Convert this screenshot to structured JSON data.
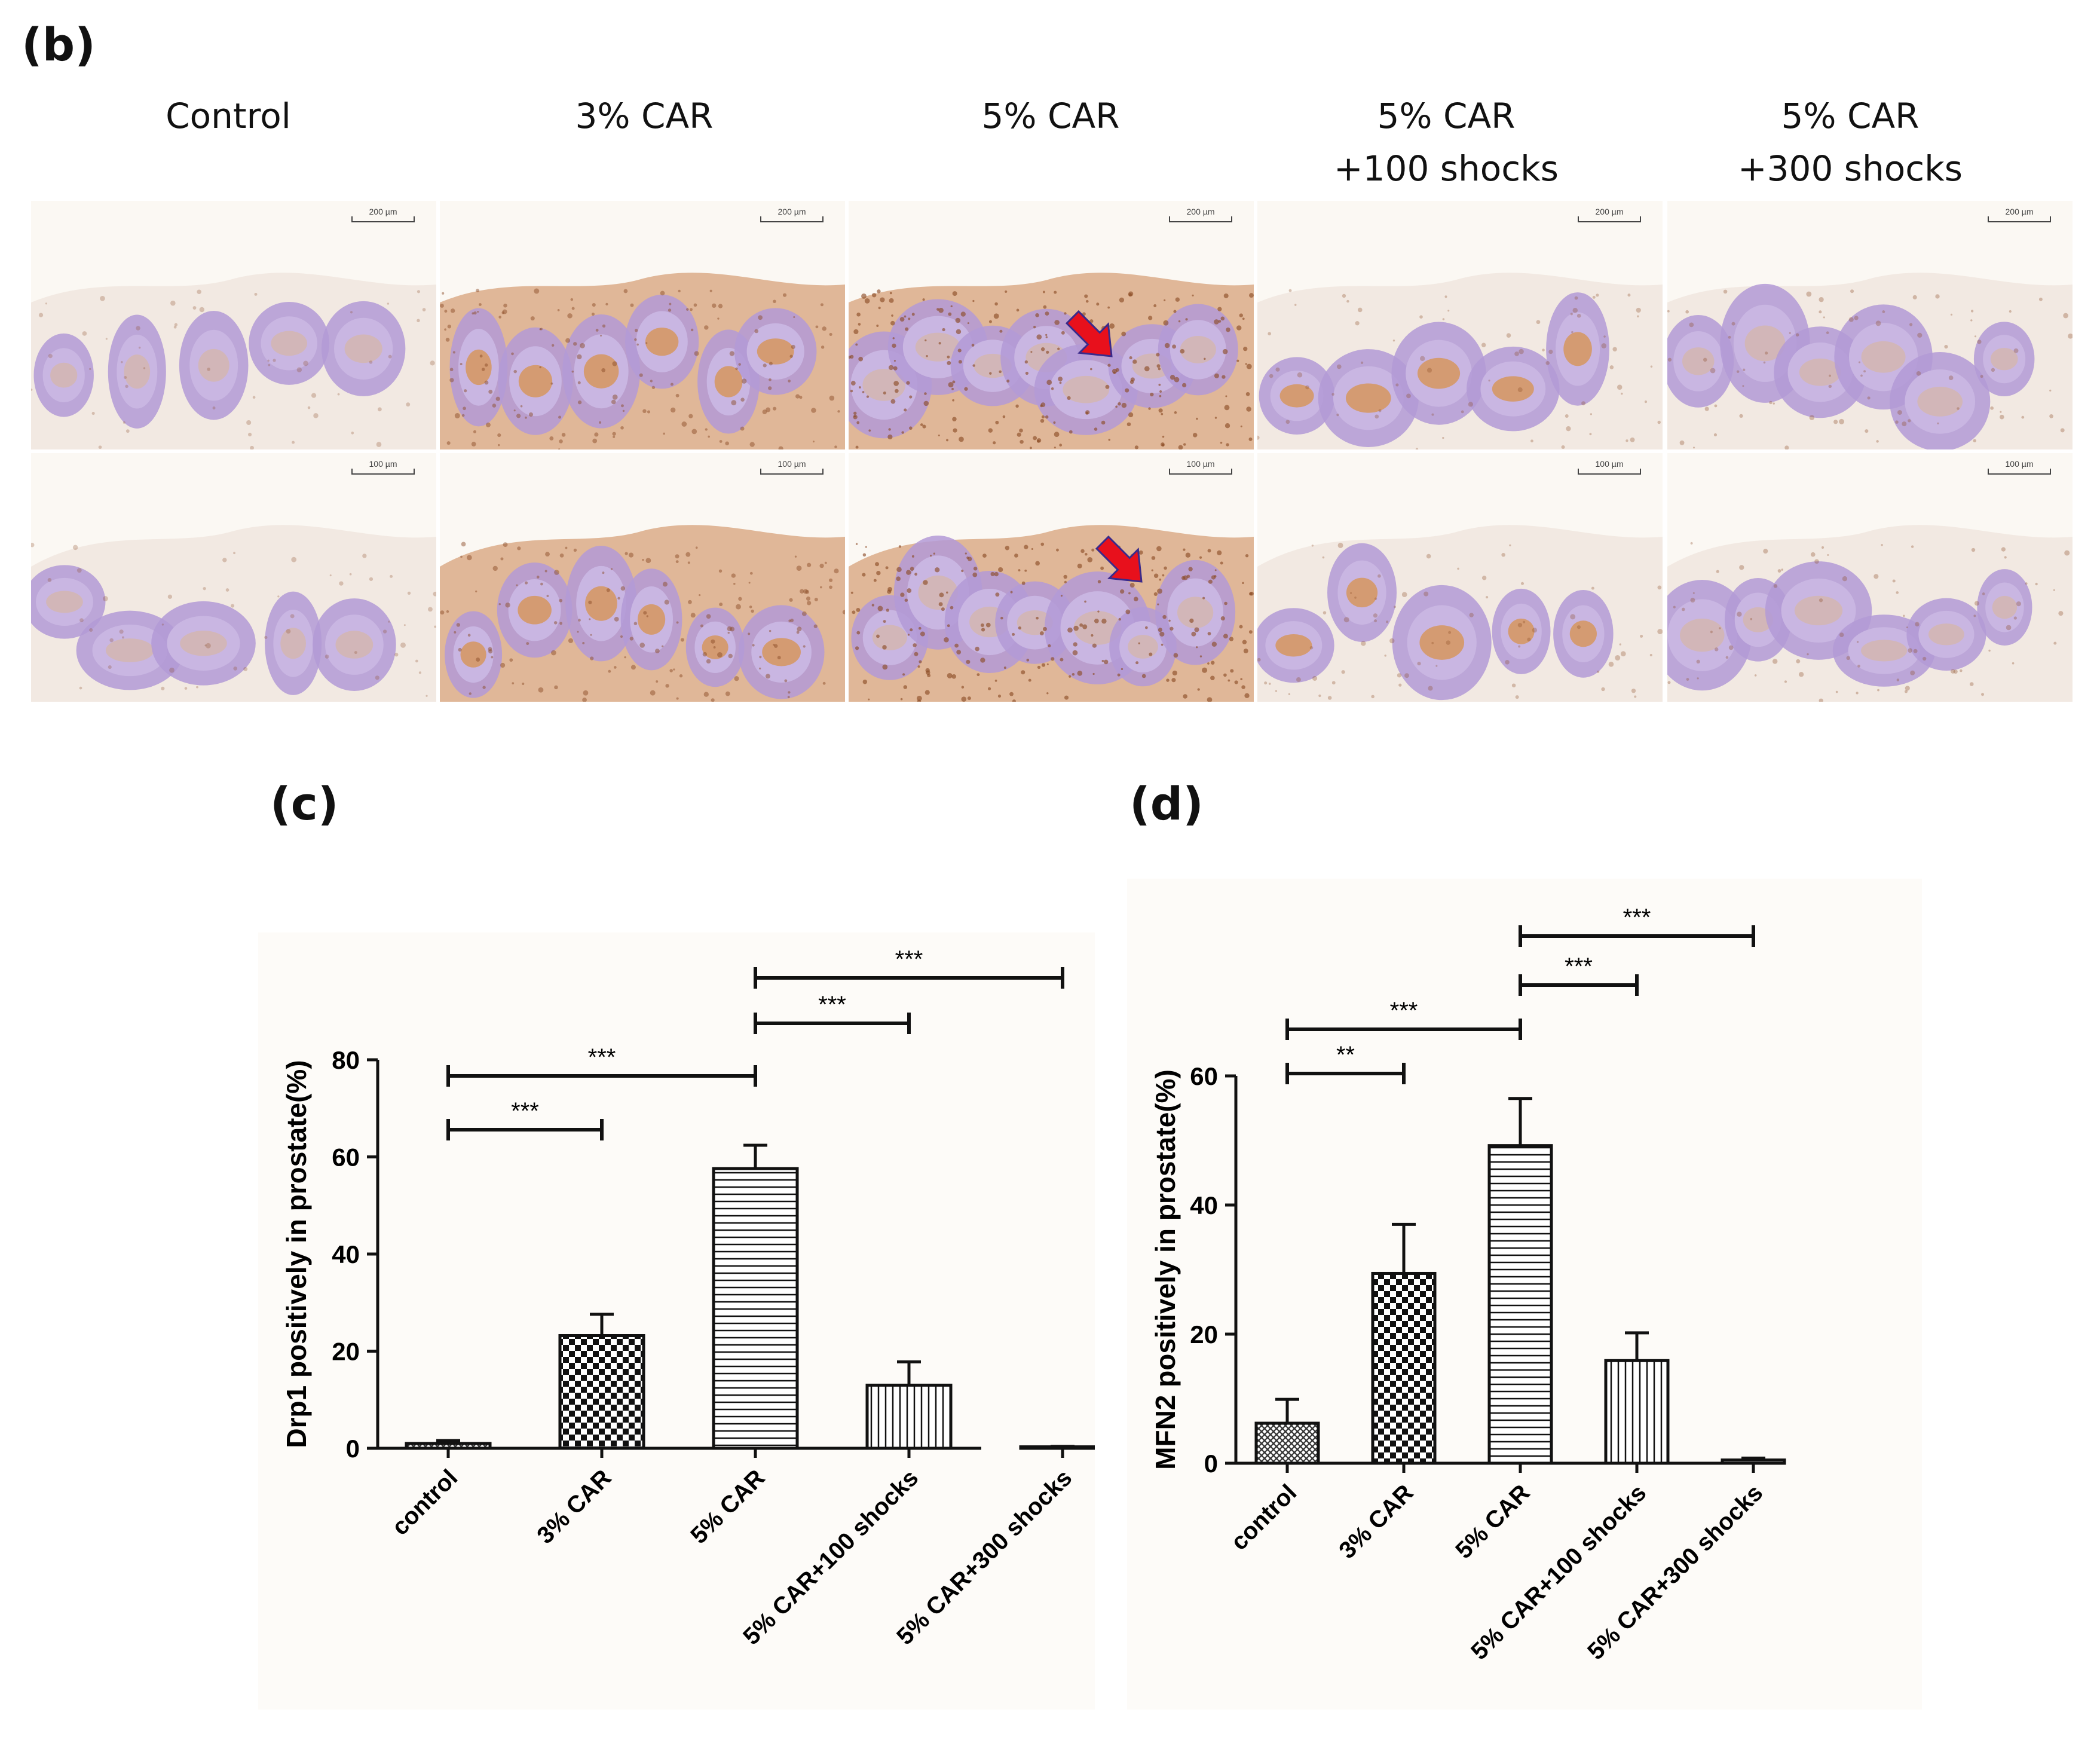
{
  "panels": {
    "b": "(b)",
    "c": "(c)",
    "d": "(d)"
  },
  "histology": {
    "columns": [
      "Control",
      "3% CAR",
      "5% CAR",
      "5% CAR\n+100 shocks",
      "5% CAR\n+300 shocks"
    ],
    "scale_top": "200 µm",
    "scale_bottom": "100 µm",
    "colors": {
      "background": "#fbf8f3",
      "hematoxylin": "#b39ad6",
      "dab": "#c8875c",
      "arrow": "#e8101c"
    }
  },
  "chart_data": [
    {
      "type": "bar",
      "panel": "(c)",
      "categories": [
        "control",
        "3% CAR",
        "5% CAR",
        "5% CAR+100 shocks",
        "5% CAR+300 shocks"
      ],
      "values": [
        1.0,
        23.2,
        57.6,
        13.0,
        0.3
      ],
      "errors": [
        0.6,
        4.4,
        4.8,
        4.8,
        0.1
      ],
      "patterns": [
        "crosshatch",
        "checker",
        "horizontal",
        "vertical",
        "none"
      ],
      "ylabel": "Drp1 positively in prostate(%)",
      "ylim": [
        0,
        80
      ],
      "yticks": [
        0,
        20,
        40,
        60,
        80
      ],
      "grid": false,
      "significance": [
        {
          "from": 0,
          "to": 1,
          "label": "***"
        },
        {
          "from": 0,
          "to": 2,
          "label": "***"
        },
        {
          "from": 2,
          "to": 3,
          "label": "***"
        },
        {
          "from": 2,
          "to": 4,
          "label": "***"
        }
      ]
    },
    {
      "type": "bar",
      "panel": "(d)",
      "categories": [
        "control",
        "3% CAR",
        "5% CAR",
        "5% CAR+100 shocks",
        "5% CAR+300 shocks"
      ],
      "values": [
        6.2,
        29.4,
        49.2,
        15.9,
        0.5
      ],
      "errors": [
        3.7,
        7.6,
        7.3,
        4.3,
        0.3
      ],
      "patterns": [
        "crosshatch",
        "checker",
        "horizontal",
        "vertical",
        "none"
      ],
      "ylabel": "MFN2 positively in prostate(%)",
      "ylim": [
        0,
        60
      ],
      "yticks": [
        0,
        20,
        40,
        60
      ],
      "grid": false,
      "significance": [
        {
          "from": 0,
          "to": 1,
          "label": "**"
        },
        {
          "from": 0,
          "to": 2,
          "label": "***"
        },
        {
          "from": 2,
          "to": 3,
          "label": "***"
        },
        {
          "from": 2,
          "to": 4,
          "label": "***"
        }
      ]
    }
  ]
}
